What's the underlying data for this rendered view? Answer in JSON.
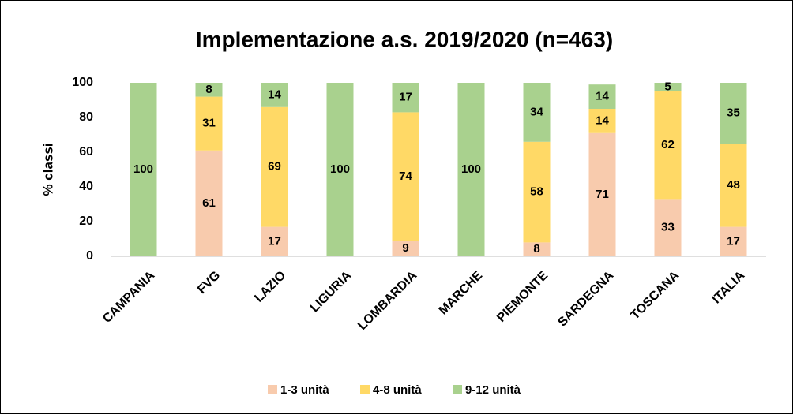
{
  "chart_data": {
    "type": "stacked_bar",
    "title": "Implementazione a.s. 2019/2020 (n=463)",
    "y_label": "% classi",
    "categories": [
      "CAMPANIA",
      "FVG",
      "LAZIO",
      "LIGURIA",
      "LOMBARDIA",
      "MARCHE",
      "PIEMONTE",
      "SARDEGNA",
      "TOSCANA",
      "ITALIA"
    ],
    "series": [
      {
        "name": "1-3 unità",
        "color": "#f8cbad",
        "values": [
          0,
          61,
          17,
          0,
          9,
          0,
          8,
          71,
          33,
          17
        ]
      },
      {
        "name": "4-8 unità",
        "color": "#ffd966",
        "values": [
          0,
          31,
          69,
          0,
          74,
          0,
          58,
          14,
          62,
          48
        ]
      },
      {
        "name": "9-12 unità",
        "color": "#a9d18e",
        "values": [
          100,
          8,
          14,
          100,
          17,
          100,
          34,
          14,
          5,
          35
        ]
      }
    ],
    "ylim": [
      0,
      100
    ],
    "yticks": [
      0,
      20,
      40,
      60,
      80,
      100
    ],
    "legend": "bottom"
  }
}
